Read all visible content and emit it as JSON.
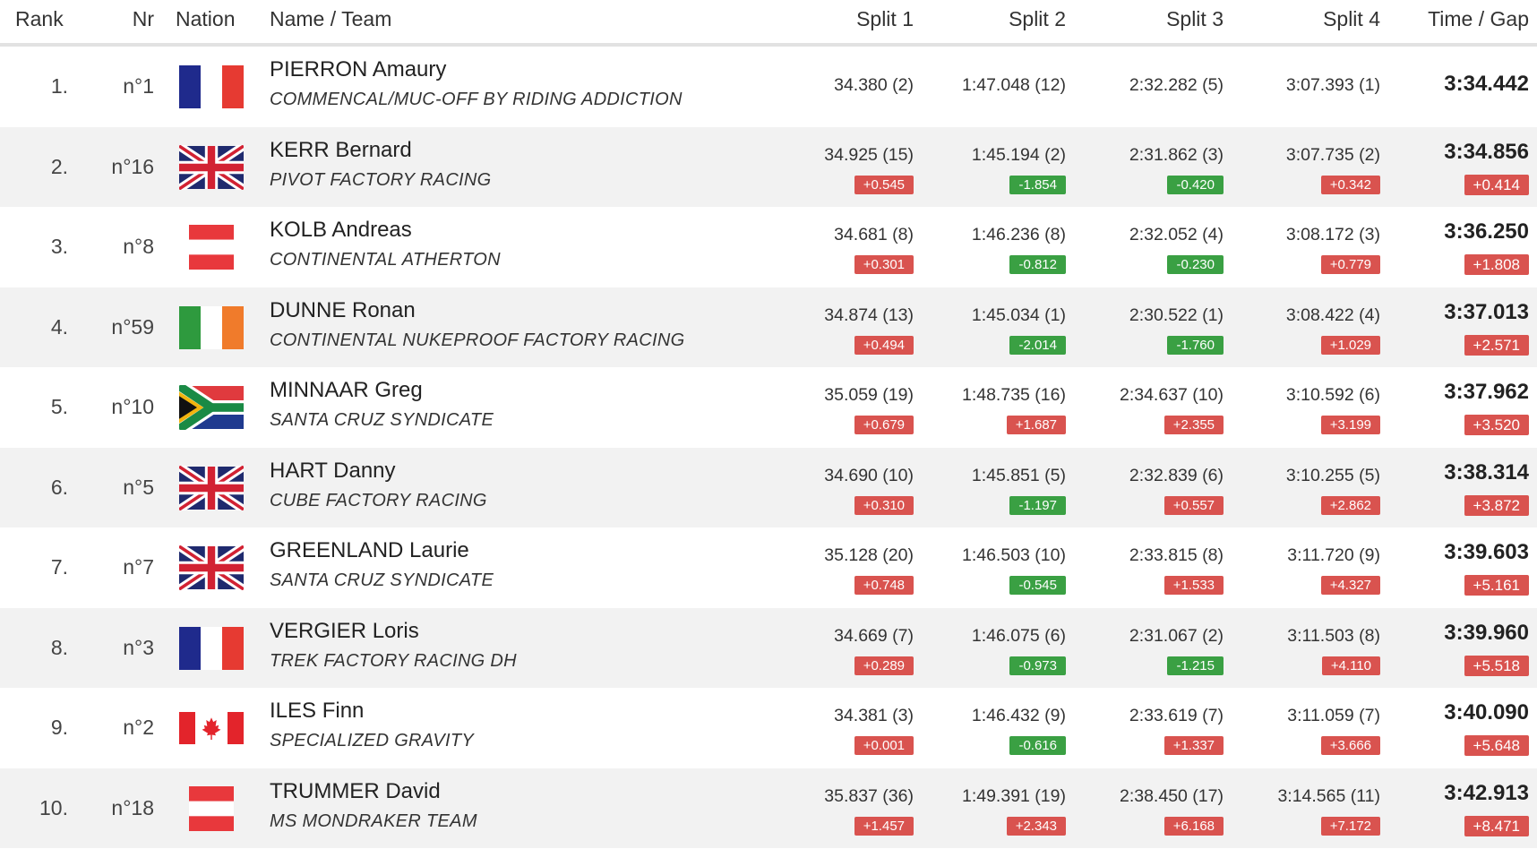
{
  "headers": {
    "rank": "Rank",
    "nr": "Nr",
    "nation": "Nation",
    "name_team": "Name / Team",
    "split1": "Split 1",
    "split2": "Split 2",
    "split3": "Split 3",
    "split4": "Split 4",
    "time_gap": "Time / Gap"
  },
  "colors": {
    "positive_badge": "#d9534f",
    "negative_badge": "#3aa043",
    "alt_row": "#f2f2f2",
    "header_rule": "#e2e2e2"
  },
  "rows": [
    {
      "rank": "1.",
      "nr": "n°1",
      "flag": "france-flag",
      "name": "PIERRON Amaury",
      "team": "COMMENCAL/MUC-OFF BY RIDING ADDICTION",
      "split1": "34.380 (2)",
      "split1_gap": "",
      "split2": "1:47.048 (12)",
      "split2_gap": "",
      "split3": "2:32.282 (5)",
      "split3_gap": "",
      "split4": "3:07.393 (1)",
      "split4_gap": "",
      "time": "3:34.442",
      "gap": ""
    },
    {
      "rank": "2.",
      "nr": "n°16",
      "flag": "uk-flag",
      "name": "KERR Bernard",
      "team": "PIVOT FACTORY RACING",
      "split1": "34.925 (15)",
      "split1_gap": "+0.545",
      "split2": "1:45.194 (2)",
      "split2_gap": "-1.854",
      "split3": "2:31.862 (3)",
      "split3_gap": "-0.420",
      "split4": "3:07.735 (2)",
      "split4_gap": "+0.342",
      "time": "3:34.856",
      "gap": "+0.414"
    },
    {
      "rank": "3.",
      "nr": "n°8",
      "flag": "austria-flag",
      "name": "KOLB Andreas",
      "team": "CONTINENTAL ATHERTON",
      "split1": "34.681 (8)",
      "split1_gap": "+0.301",
      "split2": "1:46.236 (8)",
      "split2_gap": "-0.812",
      "split3": "2:32.052 (4)",
      "split3_gap": "-0.230",
      "split4": "3:08.172 (3)",
      "split4_gap": "+0.779",
      "time": "3:36.250",
      "gap": "+1.808"
    },
    {
      "rank": "4.",
      "nr": "n°59",
      "flag": "ireland-flag",
      "name": "DUNNE Ronan",
      "team": "CONTINENTAL NUKEPROOF FACTORY RACING",
      "split1": "34.874 (13)",
      "split1_gap": "+0.494",
      "split2": "1:45.034 (1)",
      "split2_gap": "-2.014",
      "split3": "2:30.522 (1)",
      "split3_gap": "-1.760",
      "split4": "3:08.422 (4)",
      "split4_gap": "+1.029",
      "time": "3:37.013",
      "gap": "+2.571"
    },
    {
      "rank": "5.",
      "nr": "n°10",
      "flag": "south-africa-flag",
      "name": "MINNAAR Greg",
      "team": "SANTA CRUZ SYNDICATE",
      "split1": "35.059 (19)",
      "split1_gap": "+0.679",
      "split2": "1:48.735 (16)",
      "split2_gap": "+1.687",
      "split3": "2:34.637 (10)",
      "split3_gap": "+2.355",
      "split4": "3:10.592 (6)",
      "split4_gap": "+3.199",
      "time": "3:37.962",
      "gap": "+3.520"
    },
    {
      "rank": "6.",
      "nr": "n°5",
      "flag": "uk-flag",
      "name": "HART Danny",
      "team": "CUBE FACTORY RACING",
      "split1": "34.690 (10)",
      "split1_gap": "+0.310",
      "split2": "1:45.851 (5)",
      "split2_gap": "-1.197",
      "split3": "2:32.839 (6)",
      "split3_gap": "+0.557",
      "split4": "3:10.255 (5)",
      "split4_gap": "+2.862",
      "time": "3:38.314",
      "gap": "+3.872"
    },
    {
      "rank": "7.",
      "nr": "n°7",
      "flag": "uk-flag",
      "name": "GREENLAND Laurie",
      "team": "SANTA CRUZ SYNDICATE",
      "split1": "35.128 (20)",
      "split1_gap": "+0.748",
      "split2": "1:46.503 (10)",
      "split2_gap": "-0.545",
      "split3": "2:33.815 (8)",
      "split3_gap": "+1.533",
      "split4": "3:11.720 (9)",
      "split4_gap": "+4.327",
      "time": "3:39.603",
      "gap": "+5.161"
    },
    {
      "rank": "8.",
      "nr": "n°3",
      "flag": "france-flag",
      "name": "VERGIER Loris",
      "team": "TREK FACTORY RACING DH",
      "split1": "34.669 (7)",
      "split1_gap": "+0.289",
      "split2": "1:46.075 (6)",
      "split2_gap": "-0.973",
      "split3": "2:31.067 (2)",
      "split3_gap": "-1.215",
      "split4": "3:11.503 (8)",
      "split4_gap": "+4.110",
      "time": "3:39.960",
      "gap": "+5.518"
    },
    {
      "rank": "9.",
      "nr": "n°2",
      "flag": "canada-flag",
      "name": "ILES Finn",
      "team": "SPECIALIZED GRAVITY",
      "split1": "34.381 (3)",
      "split1_gap": "+0.001",
      "split2": "1:46.432 (9)",
      "split2_gap": "-0.616",
      "split3": "2:33.619 (7)",
      "split3_gap": "+1.337",
      "split4": "3:11.059 (7)",
      "split4_gap": "+3.666",
      "time": "3:40.090",
      "gap": "+5.648"
    },
    {
      "rank": "10.",
      "nr": "n°18",
      "flag": "austria-flag",
      "name": "TRUMMER David",
      "team": "MS MONDRAKER TEAM",
      "split1": "35.837 (36)",
      "split1_gap": "+1.457",
      "split2": "1:49.391 (19)",
      "split2_gap": "+2.343",
      "split3": "2:38.450 (17)",
      "split3_gap": "+6.168",
      "split4": "3:14.565 (11)",
      "split4_gap": "+7.172",
      "time": "3:42.913",
      "gap": "+8.471"
    }
  ]
}
